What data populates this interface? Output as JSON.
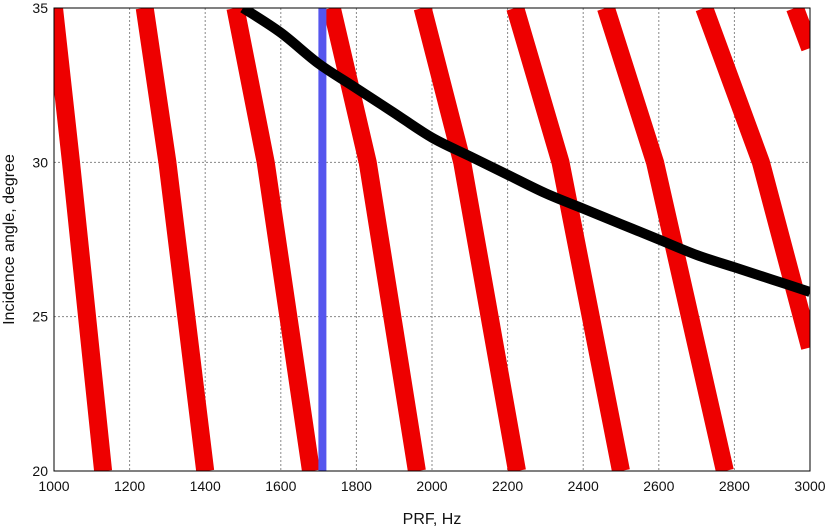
{
  "chart_data": {
    "type": "line",
    "title": "",
    "xlabel": "PRF, Hz",
    "ylabel": "Incidence angle, degree",
    "xlim": [
      1000,
      3000
    ],
    "ylim": [
      20,
      35
    ],
    "xticks": [
      1000,
      1200,
      1400,
      1600,
      1800,
      2000,
      2200,
      2400,
      2600,
      2800,
      3000
    ],
    "yticks": [
      20,
      25,
      30,
      35
    ],
    "grid": true,
    "legend": "none",
    "colors": {
      "bands": "#ee0000",
      "curve": "#000000",
      "vertical_line": "#5555ee",
      "grid": "#888888",
      "frame": "#000000"
    },
    "series": [
      {
        "kind": "band",
        "x": [
          1000,
          1045,
          1130
        ],
        "y": [
          35,
          30,
          20
        ]
      },
      {
        "kind": "band",
        "x": [
          1240,
          1300,
          1400
        ],
        "y": [
          35,
          30,
          20
        ]
      },
      {
        "kind": "band",
        "x": [
          1480,
          1560,
          1680
        ],
        "y": [
          35,
          30,
          20
        ]
      },
      {
        "kind": "band",
        "x": [
          1735,
          1830,
          1960
        ],
        "y": [
          35,
          30,
          20
        ]
      },
      {
        "kind": "band",
        "x": [
          1975,
          2080,
          2225
        ],
        "y": [
          35,
          30,
          20
        ]
      },
      {
        "kind": "band",
        "x": [
          2220,
          2340,
          2500
        ],
        "y": [
          35,
          30,
          20
        ]
      },
      {
        "kind": "band",
        "x": [
          2460,
          2590,
          2775
        ],
        "y": [
          35,
          30,
          20
        ]
      },
      {
        "kind": "band",
        "x": [
          2720,
          2870,
          3000
        ],
        "y": [
          35,
          30,
          24
        ]
      },
      {
        "kind": "band",
        "x": [
          2960,
          3000
        ],
        "y": [
          35,
          33.7
        ]
      },
      {
        "kind": "curve",
        "x": [
          1500,
          1600,
          1700,
          1800,
          1900,
          2000,
          2100,
          2200,
          2300,
          2400,
          2500,
          2600,
          2700,
          2800,
          2900,
          3000
        ],
        "y": [
          35,
          34.2,
          33.2,
          32.4,
          31.6,
          30.8,
          30.2,
          29.6,
          29.0,
          28.5,
          28.0,
          27.5,
          27.0,
          26.6,
          26.2,
          25.8
        ]
      },
      {
        "kind": "vertical",
        "x": [
          1710,
          1710
        ],
        "y": [
          20,
          35
        ]
      }
    ]
  }
}
